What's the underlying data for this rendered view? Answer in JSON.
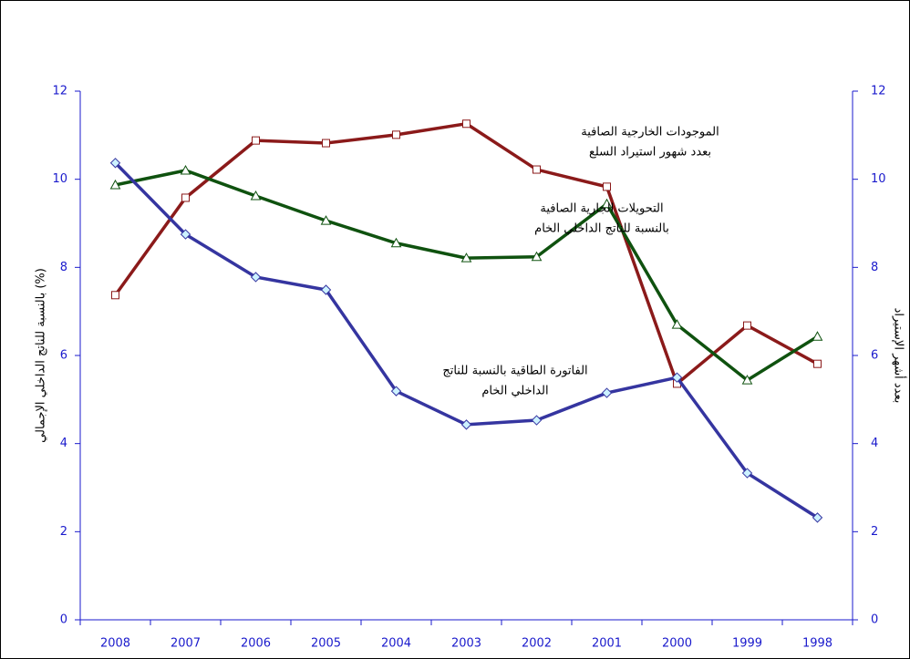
{
  "chart_data": {
    "type": "line",
    "categories": [
      "2008",
      "2007",
      "2006",
      "2005",
      "2004",
      "2003",
      "2002",
      "2001",
      "2000",
      "1999",
      "1998"
    ],
    "ylabel": "بالنسبة للناتج الداخلي الإجمالي (%)",
    "y2label": "بعدد أشهر الإستيراد",
    "ylim": [
      0,
      12
    ],
    "yticks": [
      0,
      2,
      4,
      6,
      8,
      10,
      12
    ],
    "y2lim": [
      0,
      12
    ],
    "y2ticks": [
      0,
      2,
      4,
      6,
      8,
      10,
      12
    ],
    "series": [
      {
        "label": [
          "الموجودات الخارجية الصافية",
          "بعدد شهور استيراد السلع"
        ],
        "color": "#8b1a1a",
        "marker": "square",
        "axis": "y2",
        "values": [
          7.37,
          9.58,
          10.88,
          10.82,
          11.01,
          11.26,
          10.22,
          9.83,
          5.36,
          6.68,
          5.81
        ]
      },
      {
        "label": [
          "التحويلات الجارية الصافية",
          "بالنسبة للناتج الداخلي الخام"
        ],
        "color": "#0f520f",
        "marker": "triangle",
        "values": [
          9.87,
          10.2,
          9.62,
          9.06,
          8.55,
          8.21,
          8.24,
          9.44,
          6.7,
          5.44,
          6.43
        ]
      },
      {
        "label": [
          "الفاتورة الطاقية بالنسبة للناتج",
          "الداخلي الخام"
        ],
        "color": "#3535a0",
        "marker": "diamond",
        "values": [
          10.37,
          8.75,
          7.78,
          7.49,
          5.19,
          4.43,
          4.53,
          5.15,
          5.5,
          3.33,
          2.32
        ]
      }
    ]
  }
}
